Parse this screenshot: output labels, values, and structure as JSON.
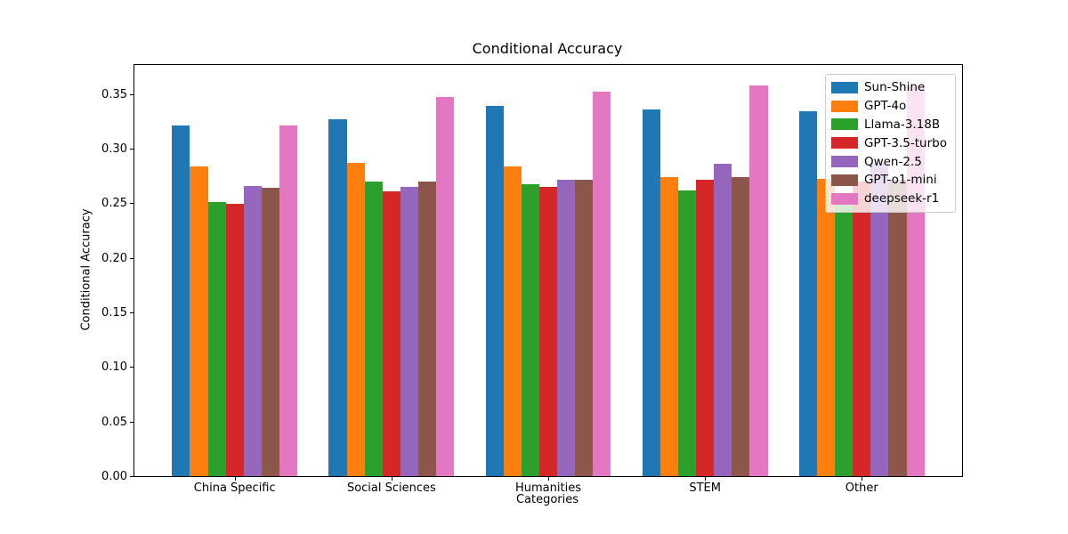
{
  "chart_data": {
    "type": "bar",
    "title": "Conditional Accuracy",
    "xlabel": "Categories",
    "ylabel": "Conditional Accuracy",
    "categories": [
      "China Specific",
      "Social Sciences",
      "Humanities",
      "STEM",
      "Other"
    ],
    "series": [
      {
        "name": "Sun-Shine",
        "color": "#1f77b4",
        "values": [
          0.321,
          0.327,
          0.339,
          0.336,
          0.334
        ]
      },
      {
        "name": "GPT-4o",
        "color": "#ff7f0e",
        "values": [
          0.284,
          0.287,
          0.284,
          0.274,
          0.272
        ]
      },
      {
        "name": "Llama-3.18B",
        "color": "#2ca02c",
        "values": [
          0.251,
          0.27,
          0.267,
          0.262,
          0.258
        ]
      },
      {
        "name": "GPT-3.5-turbo",
        "color": "#d62728",
        "values": [
          0.249,
          0.261,
          0.265,
          0.271,
          0.27
        ]
      },
      {
        "name": "Qwen-2.5",
        "color": "#9467bd",
        "values": [
          0.266,
          0.265,
          0.271,
          0.286,
          0.287
        ]
      },
      {
        "name": "GPT-o1-mini",
        "color": "#8c564b",
        "values": [
          0.264,
          0.27,
          0.271,
          0.274,
          0.271
        ]
      },
      {
        "name": "deepseek-r1",
        "color": "#e377c2",
        "values": [
          0.321,
          0.347,
          0.352,
          0.358,
          0.357
        ]
      }
    ],
    "yticks": [
      0.0,
      0.05,
      0.1,
      0.15,
      0.2,
      0.25,
      0.3,
      0.35
    ],
    "ylim": [
      0,
      0.3765
    ],
    "grid": false,
    "legend_position": "upper right"
  }
}
